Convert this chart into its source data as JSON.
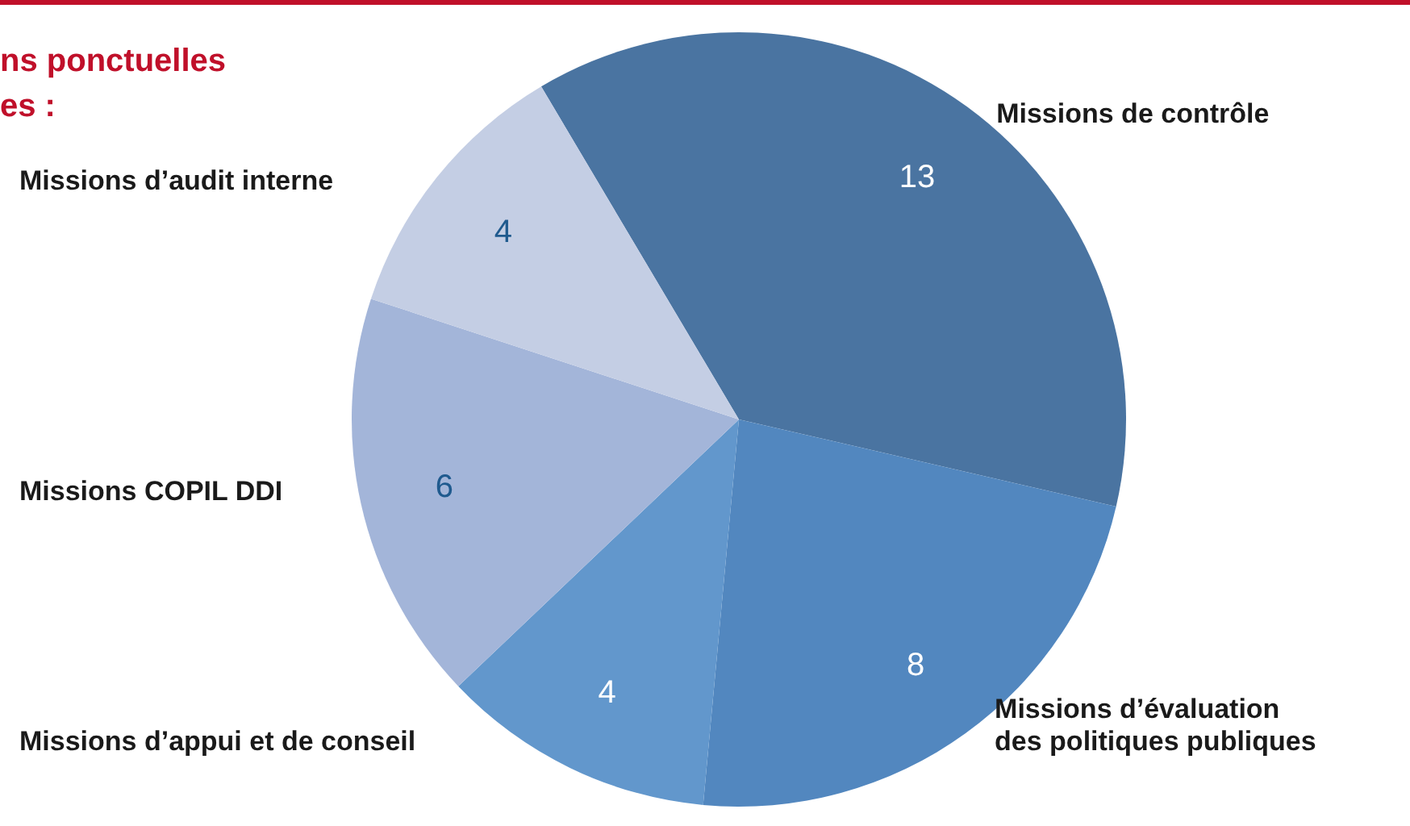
{
  "chart_data": {
    "type": "pie",
    "title": "ns ponctuelles\nes :",
    "categories": [
      "Missions de contrôle",
      "Missions d’évaluation des politiques publiques",
      "Missions d’appui et de conseil",
      "Missions COPIL DDI",
      "Missions d’audit interne"
    ],
    "values": [
      13,
      8,
      4,
      6,
      4
    ],
    "colors": [
      "#4a74a1",
      "#5287bf",
      "#6297cc",
      "#a3b5d9",
      "#c4cee4"
    ],
    "data_labels": true
  }
}
